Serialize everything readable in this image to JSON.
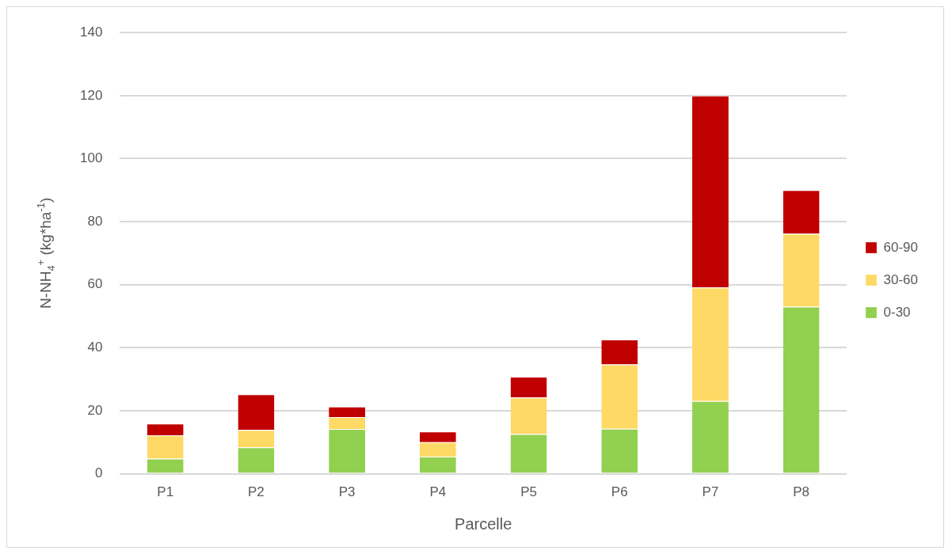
{
  "chart_data": {
    "type": "bar",
    "stacked": true,
    "xlabel": "Parcelle",
    "ylabel": "N-NH$_{4}$$^{+}$ (kg*ha$^{-1}$)",
    "categories": [
      "P1",
      "P2",
      "P3",
      "P4",
      "P5",
      "P6",
      "P7",
      "P8"
    ],
    "series": [
      {
        "name": "0-30",
        "color": "#92d050",
        "values": [
          4.8,
          8.4,
          14.2,
          5.4,
          12.6,
          14.3,
          23.1,
          53.0
        ]
      },
      {
        "name": "30-60",
        "color": "#ffd966",
        "values": [
          7.4,
          5.5,
          3.8,
          4.6,
          11.6,
          20.4,
          36.0,
          23.2
        ]
      },
      {
        "name": "60-90",
        "color": "#c00000",
        "values": [
          3.7,
          11.3,
          3.3,
          3.4,
          6.6,
          7.9,
          60.9,
          13.8
        ]
      }
    ],
    "ylim": [
      0,
      140
    ],
    "yticks": [
      0,
      20,
      40,
      60,
      80,
      100,
      120,
      140
    ],
    "grid": "y",
    "legend": "right"
  }
}
